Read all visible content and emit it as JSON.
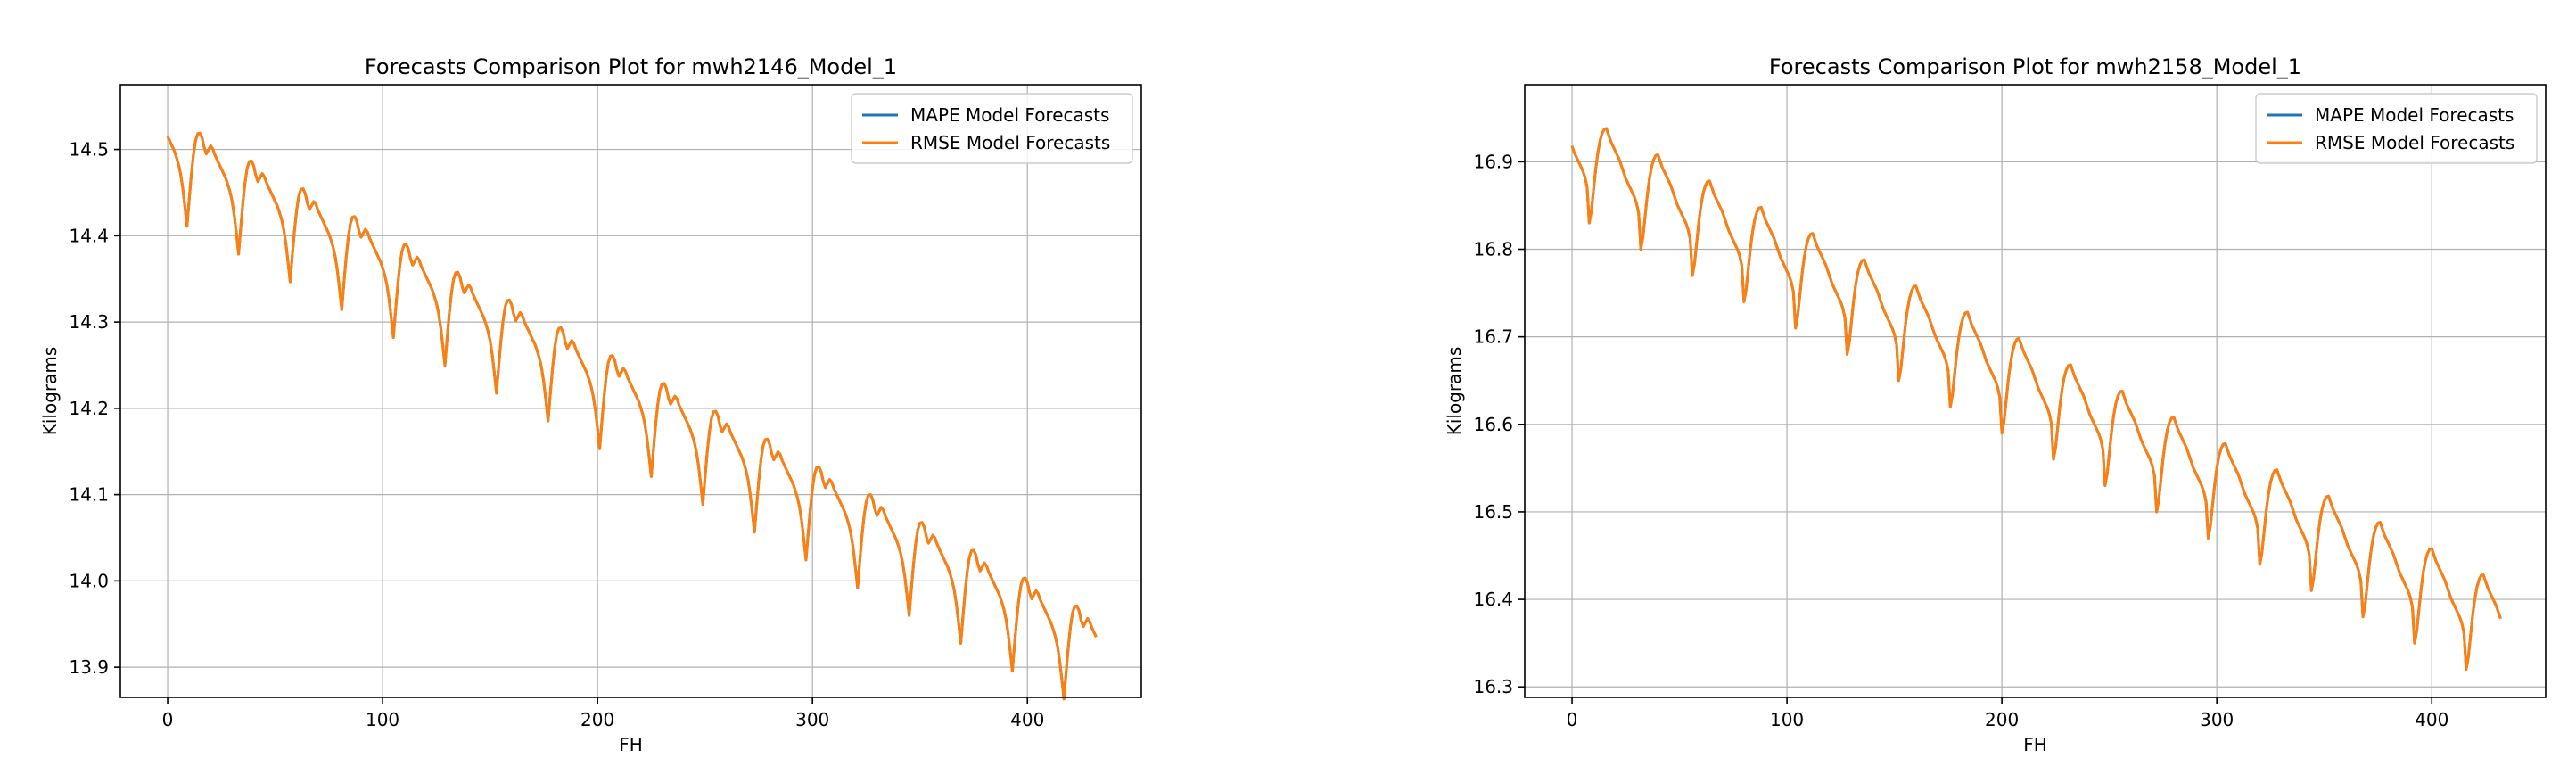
{
  "chart_data": [
    {
      "type": "line",
      "title": "Forecasts Comparison Plot for mwh2146_Model_1",
      "xlabel": "FH",
      "ylabel": "Kilograms",
      "xlim": [
        -22,
        453
      ],
      "ylim": [
        13.865,
        14.575
      ],
      "xticks": [
        0,
        100,
        200,
        300,
        400
      ],
      "yticks": [
        13.9,
        14.0,
        14.1,
        14.2,
        14.3,
        14.4,
        14.5
      ],
      "grid": true,
      "legend_position": "top-right",
      "x_step": 1,
      "x_start": 0,
      "x_end": 432,
      "trend_start": 14.525,
      "trend_end": 13.945,
      "cycle_period": 24,
      "cycle_phase": 9,
      "cycle_pattern": [
        -0.102,
        -0.07,
        -0.04,
        -0.015,
        0.003,
        0.012,
        0.014,
        0.01,
        0.0,
        -0.006,
        0.0,
        0.006,
        0.004,
        -0.002,
        -0.006,
        -0.01,
        -0.014,
        -0.018,
        -0.022,
        -0.028,
        -0.035,
        -0.045,
        -0.06,
        -0.08
      ],
      "series": [
        {
          "name": "MAPE Model Forecasts",
          "color": "#1f77b4"
        },
        {
          "name": "RMSE Model Forecasts",
          "color": "#ff7f0e"
        }
      ]
    },
    {
      "type": "line",
      "title": "Forecasts Comparison Plot for mwh2158_Model_1",
      "xlabel": "FH",
      "ylabel": "Kilograms",
      "xlim": [
        -22,
        453
      ],
      "ylim": [
        16.288,
        16.988
      ],
      "xticks": [
        0,
        100,
        200,
        300,
        400
      ],
      "yticks": [
        16.3,
        16.4,
        16.5,
        16.6,
        16.7,
        16.8,
        16.9
      ],
      "grid": true,
      "legend_position": "top-right",
      "x_step": 1,
      "x_start": 0,
      "x_end": 432,
      "trend_start": 16.93,
      "trend_end": 16.39,
      "cycle_period": 24,
      "cycle_phase": 8,
      "cycle_pattern": [
        -0.09,
        -0.075,
        -0.05,
        -0.025,
        -0.005,
        0.01,
        0.02,
        0.026,
        0.028,
        0.022,
        0.016,
        0.012,
        0.008,
        0.004,
        0.0,
        -0.006,
        -0.012,
        -0.018,
        -0.022,
        -0.026,
        -0.03,
        -0.034,
        -0.04,
        -0.05
      ],
      "series": [
        {
          "name": "MAPE Model Forecasts",
          "color": "#1f77b4"
        },
        {
          "name": "RMSE Model Forecasts",
          "color": "#ff7f0e"
        }
      ]
    }
  ]
}
